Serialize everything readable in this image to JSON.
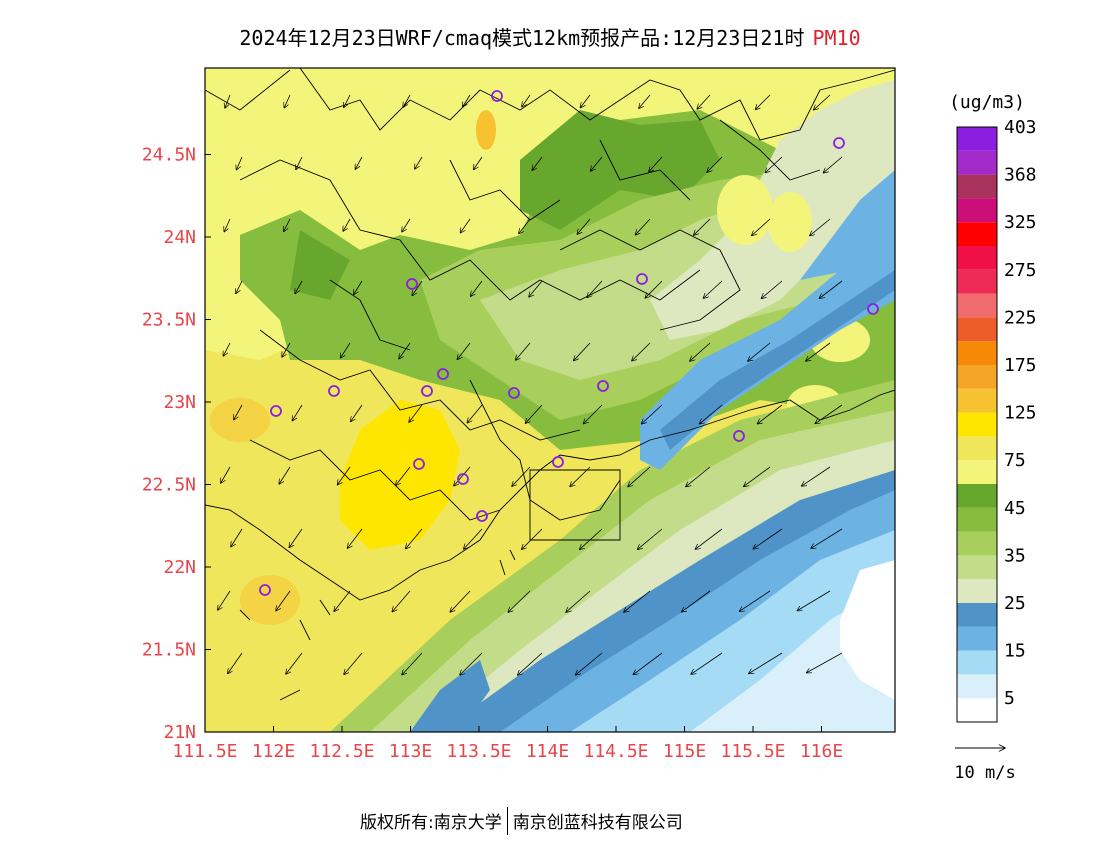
{
  "title": {
    "main": "2024年12月23日WRF/cmaq模式12km预报产品:12月23日21时",
    "variable": "PM10"
  },
  "colorbar": {
    "unit": "(ug/m3)",
    "bins": [
      {
        "color": "#ffffff"
      },
      {
        "color": "#d9f0fa"
      },
      {
        "color": "#a6dbf5"
      },
      {
        "color": "#6cb3e4"
      },
      {
        "color": "#4f93c8"
      },
      {
        "color": "#dde8c0"
      },
      {
        "color": "#c3dc8a"
      },
      {
        "color": "#a8cf5c"
      },
      {
        "color": "#86bd3e"
      },
      {
        "color": "#68a72e"
      },
      {
        "color": "#f3f57a"
      },
      {
        "color": "#efe65c"
      },
      {
        "color": "#ffe600"
      },
      {
        "color": "#f7c232"
      },
      {
        "color": "#f5a428"
      },
      {
        "color": "#f58a08"
      },
      {
        "color": "#ee5c29"
      },
      {
        "color": "#f06b6b"
      },
      {
        "color": "#ee2b55"
      },
      {
        "color": "#f00f46"
      },
      {
        "color": "#ff0000"
      },
      {
        "color": "#cc0f78"
      },
      {
        "color": "#a8325c"
      },
      {
        "color": "#a32ac8"
      },
      {
        "color": "#8c1ee0"
      }
    ],
    "labels": [
      {
        "text": "5",
        "bin": 1
      },
      {
        "text": "15",
        "bin": 3
      },
      {
        "text": "25",
        "bin": 5
      },
      {
        "text": "35",
        "bin": 7
      },
      {
        "text": "45",
        "bin": 9
      },
      {
        "text": "75",
        "bin": 11
      },
      {
        "text": "125",
        "bin": 13
      },
      {
        "text": "175",
        "bin": 15
      },
      {
        "text": "225",
        "bin": 17
      },
      {
        "text": "275",
        "bin": 19
      },
      {
        "text": "325",
        "bin": 21
      },
      {
        "text": "368",
        "bin": 23
      },
      {
        "text": "403",
        "bin": 25
      }
    ]
  },
  "wind_scale": {
    "label": "10 m/s"
  },
  "lon_ticks": [
    "111.5E",
    "112E",
    "112.5E",
    "113E",
    "113.5E",
    "114E",
    "114.5E",
    "115E",
    "115.5E",
    "116E"
  ],
  "lat_ticks": [
    "21N",
    "21.5N",
    "22N",
    "22.5N",
    "23N",
    "23.5N",
    "24N",
    "24.5N"
  ],
  "copyright": {
    "owner": "版权所有:南京大学",
    "partner": "南京创蓝科技有限公司"
  },
  "colors": {
    "tick_text": "#e8454a",
    "station_marker": "#8c1ee0"
  }
}
